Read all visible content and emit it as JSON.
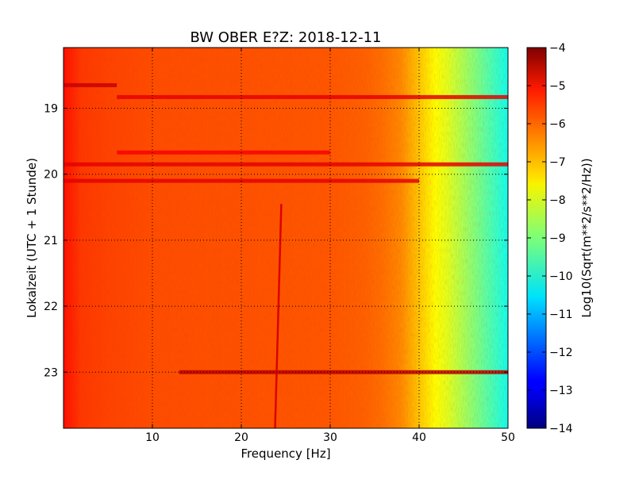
{
  "chart_data": {
    "type": "heatmap",
    "title": "BW OBER E?Z: 2018-12-11",
    "xlabel": "Frequency [Hz]",
    "ylabel": "Lokalzeit (UTC + 1 Stunde)",
    "xlim": [
      0,
      50
    ],
    "ylim": [
      23.85,
      18.08
    ],
    "x_ticks": [
      10,
      20,
      30,
      40,
      50
    ],
    "y_ticks": [
      19,
      20,
      21,
      22,
      23
    ],
    "grid": true,
    "colormap": "jet",
    "colorbar": {
      "label": "Log10(Sqrt(m**2/s**2/Hz))",
      "range": [
        -14,
        -4
      ],
      "ticks": [
        -4,
        -5,
        -6,
        -7,
        -8,
        -9,
        -10,
        -11,
        -12,
        -13,
        -14
      ]
    },
    "spectrum_profile": {
      "frequency_hz": [
        0,
        2,
        5,
        10,
        20,
        30,
        34,
        36,
        38,
        39,
        40,
        41,
        42,
        43,
        44,
        45,
        46,
        47,
        48,
        49,
        50
      ],
      "log10_amplitude": [
        -5.4,
        -5.8,
        -5.9,
        -6.0,
        -6.05,
        -6.1,
        -6.2,
        -6.35,
        -6.6,
        -6.9,
        -7.2,
        -7.5,
        -7.8,
        -8.0,
        -8.3,
        -8.6,
        -8.9,
        -9.2,
        -9.5,
        -9.8,
        -10.1
      ]
    },
    "horizontal_bands": [
      {
        "time_h": 18.65,
        "f_start_hz": 0,
        "f_end_hz": 6,
        "log10_amplitude": -4.7
      },
      {
        "time_h": 18.83,
        "f_start_hz": 6,
        "f_end_hz": 50,
        "log10_amplitude": -5.0
      },
      {
        "time_h": 19.67,
        "f_start_hz": 6,
        "f_end_hz": 30,
        "log10_amplitude": -5.2
      },
      {
        "time_h": 19.85,
        "f_start_hz": 0,
        "f_end_hz": 50,
        "log10_amplitude": -5.0
      },
      {
        "time_h": 20.1,
        "f_start_hz": 0,
        "f_end_hz": 40,
        "log10_amplitude": -5.0
      },
      {
        "time_h": 23.0,
        "f_start_hz": 13,
        "f_end_hz": 50,
        "log10_amplitude": -4.6
      }
    ],
    "vertical_line": {
      "frequency_hz_start": 23.8,
      "frequency_hz_end": 24.5,
      "time_start_h": 20.45,
      "time_end_h": 23.85,
      "log10_amplitude": -4.9
    }
  }
}
